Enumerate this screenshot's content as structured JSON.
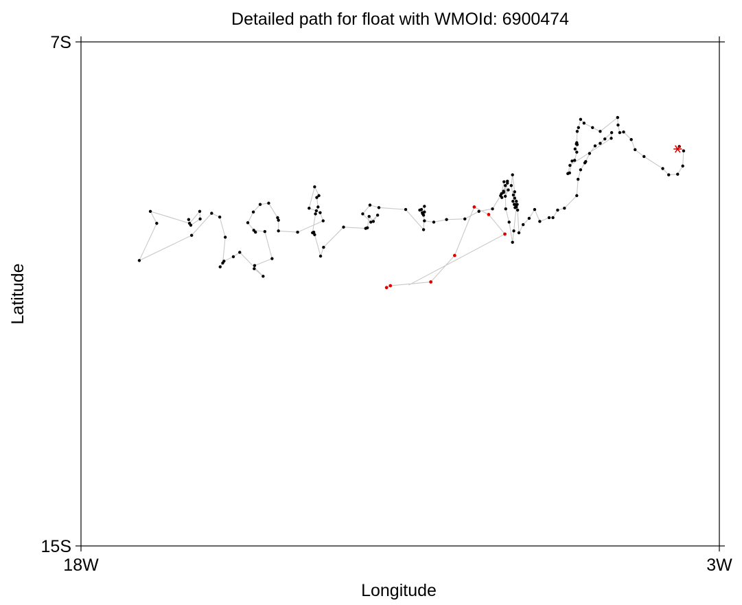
{
  "chart_data": {
    "type": "scatter",
    "title": "Detailed path for float with WMOId: 6900474",
    "xlabel": "Longitude",
    "ylabel": "Latitude",
    "xlim": [
      -18,
      -3
    ],
    "ylim": [
      -15,
      -7
    ],
    "x_ticks": [
      {
        "value": -18,
        "label": "18W"
      },
      {
        "value": -3,
        "label": "3W"
      }
    ],
    "y_ticks": [
      {
        "value": -7,
        "label": "7S"
      },
      {
        "value": -15,
        "label": "15S"
      }
    ],
    "grid": false,
    "legend": "none",
    "colors": {
      "path": "#c8c8c8",
      "point": "#000000",
      "recent": "#e00000",
      "deploy": "#e00000"
    },
    "series": [
      {
        "role": "path",
        "x": [
          -3.94,
          -3.84,
          -3.86,
          -3.98,
          -4.19,
          -4.33,
          -4.77,
          -4.98,
          -5.07,
          -5.25,
          -5.34,
          -5.38,
          -5.39,
          -5.8,
          -5.98,
          -6.18,
          -6.26,
          -6.31,
          -6.34,
          -6.35,
          -6.36,
          -6.34,
          -6.39,
          -6.35,
          -6.4,
          -6.46,
          -6.52,
          -6.56,
          -6.51,
          -5.54,
          -5.53,
          -5.69,
          -5.8,
          -5.92,
          -6.05,
          -6.14,
          -6.16,
          -6.26,
          -6.32,
          -6.35,
          -6.64,
          -6.8,
          -6.91,
          -7.0,
          -7.22,
          -7.34,
          -7.47,
          -7.61,
          -7.71,
          -7.75,
          -7.81,
          -7.84,
          -7.82,
          -7.85,
          -7.8,
          -7.89,
          -7.86,
          -7.81,
          -7.77,
          -7.8,
          -7.74,
          -7.77,
          -7.83,
          -7.86,
          -7.94,
          -8.02,
          -8.03,
          -8.07,
          -7.98,
          -8.03,
          -7.96,
          -8.07,
          -7.98,
          -8.06,
          -8.12,
          -8.11,
          -8.14,
          -8.33,
          -8.65,
          -8.98,
          -9.41,
          -9.71,
          -9.93,
          -9.95,
          -9.97,
          -9.93,
          -9.98,
          -10.0,
          -10.04,
          -9.93,
          -9.95,
          -10.37,
          -11.0,
          -11.21,
          -11.38,
          -11.19,
          -11.03,
          -11.13,
          -11.23,
          -11.27,
          -11.31,
          -11.83,
          -12.3,
          -12.37,
          -12.51,
          -12.53,
          -12.56,
          -12.49,
          -12.43,
          -12.46,
          -12.41,
          -12.51,
          -12.64,
          -12.47,
          -12.38,
          -12.31,
          -12.91,
          -13.36,
          -13.36,
          -13.38,
          -13.59,
          -13.79,
          -13.95,
          -14.08,
          -13.9,
          -13.94,
          -13.68,
          -13.51,
          -13.92,
          -13.93,
          -13.72,
          -14.27,
          -14.42,
          -14.64,
          -14.73,
          -14.67,
          -14.61,
          -14.74,
          -14.93,
          -15.4,
          -16.63,
          -16.22,
          -16.37,
          -15.45,
          -15.21,
          -15.2,
          -15.42,
          -15.47
        ],
        "y": [
          -8.66,
          -8.73,
          -8.97,
          -9.1,
          -9.11,
          -9.01,
          -8.82,
          -8.71,
          -8.55,
          -8.43,
          -8.44,
          -8.32,
          -8.2,
          -8.42,
          -8.36,
          -8.29,
          -8.23,
          -8.36,
          -8.42,
          -8.6,
          -8.62,
          -8.63,
          -8.7,
          -8.75,
          -8.88,
          -8.89,
          -9.08,
          -9.09,
          -8.96,
          -8.53,
          -8.44,
          -8.54,
          -8.61,
          -8.65,
          -8.77,
          -8.9,
          -8.92,
          -9.03,
          -9.18,
          -9.44,
          -9.64,
          -9.67,
          -9.79,
          -9.79,
          -9.85,
          -9.66,
          -9.8,
          -9.9,
          -10.03,
          -9.58,
          -9.48,
          -9.43,
          -9.58,
          -9.53,
          -9.63,
          -9.28,
          -9.11,
          -9.38,
          -9.53,
          -9.58,
          -9.67,
          -9.62,
          -10.0,
          -10.18,
          -9.86,
          -9.65,
          -9.28,
          -9.37,
          -9.24,
          -9.45,
          -9.35,
          -9.39,
          -9.21,
          -9.22,
          -9.41,
          -9.47,
          -9.44,
          -9.65,
          -9.69,
          -9.81,
          -9.82,
          -9.86,
          -9.84,
          -9.75,
          -9.73,
          -9.7,
          -9.71,
          -9.66,
          -9.67,
          -9.61,
          -9.98,
          -9.66,
          -9.63,
          -9.59,
          -9.73,
          -9.86,
          -9.75,
          -9.85,
          -9.77,
          -9.95,
          -9.96,
          -9.94,
          -10.26,
          -10.4,
          -10.06,
          -10.02,
          -10.03,
          -9.73,
          -9.62,
          -9.47,
          -9.44,
          -9.3,
          -9.64,
          -9.68,
          -9.71,
          -9.84,
          -10.02,
          -10.0,
          -9.83,
          -9.79,
          -9.56,
          -9.58,
          -9.7,
          -9.87,
          -10.02,
          -9.99,
          -10.01,
          -10.44,
          -10.55,
          -10.6,
          -10.72,
          -10.34,
          -10.41,
          -10.48,
          -10.57,
          -10.51,
          -10.1,
          -9.78,
          -9.72,
          -10.07,
          -10.47,
          -9.88,
          -9.69,
          -9.88,
          -9.69,
          -9.81,
          -9.91,
          -9.82
        ],
        "visible_start_of_path": [
          -3.84,
          -8.73
        ]
      },
      {
        "role": "recent-profiles",
        "x": [
          -8.04,
          -8.42,
          -8.76,
          -9.22,
          -9.78,
          -10.73,
          -10.82
        ],
        "y": [
          -10.05,
          -9.74,
          -9.62,
          -10.39,
          -10.81,
          -10.87,
          -10.9
        ]
      },
      {
        "role": "deployment-marker",
        "marker": "asterisk",
        "x": [
          -3.98
        ],
        "y": [
          -8.7
        ]
      }
    ]
  }
}
